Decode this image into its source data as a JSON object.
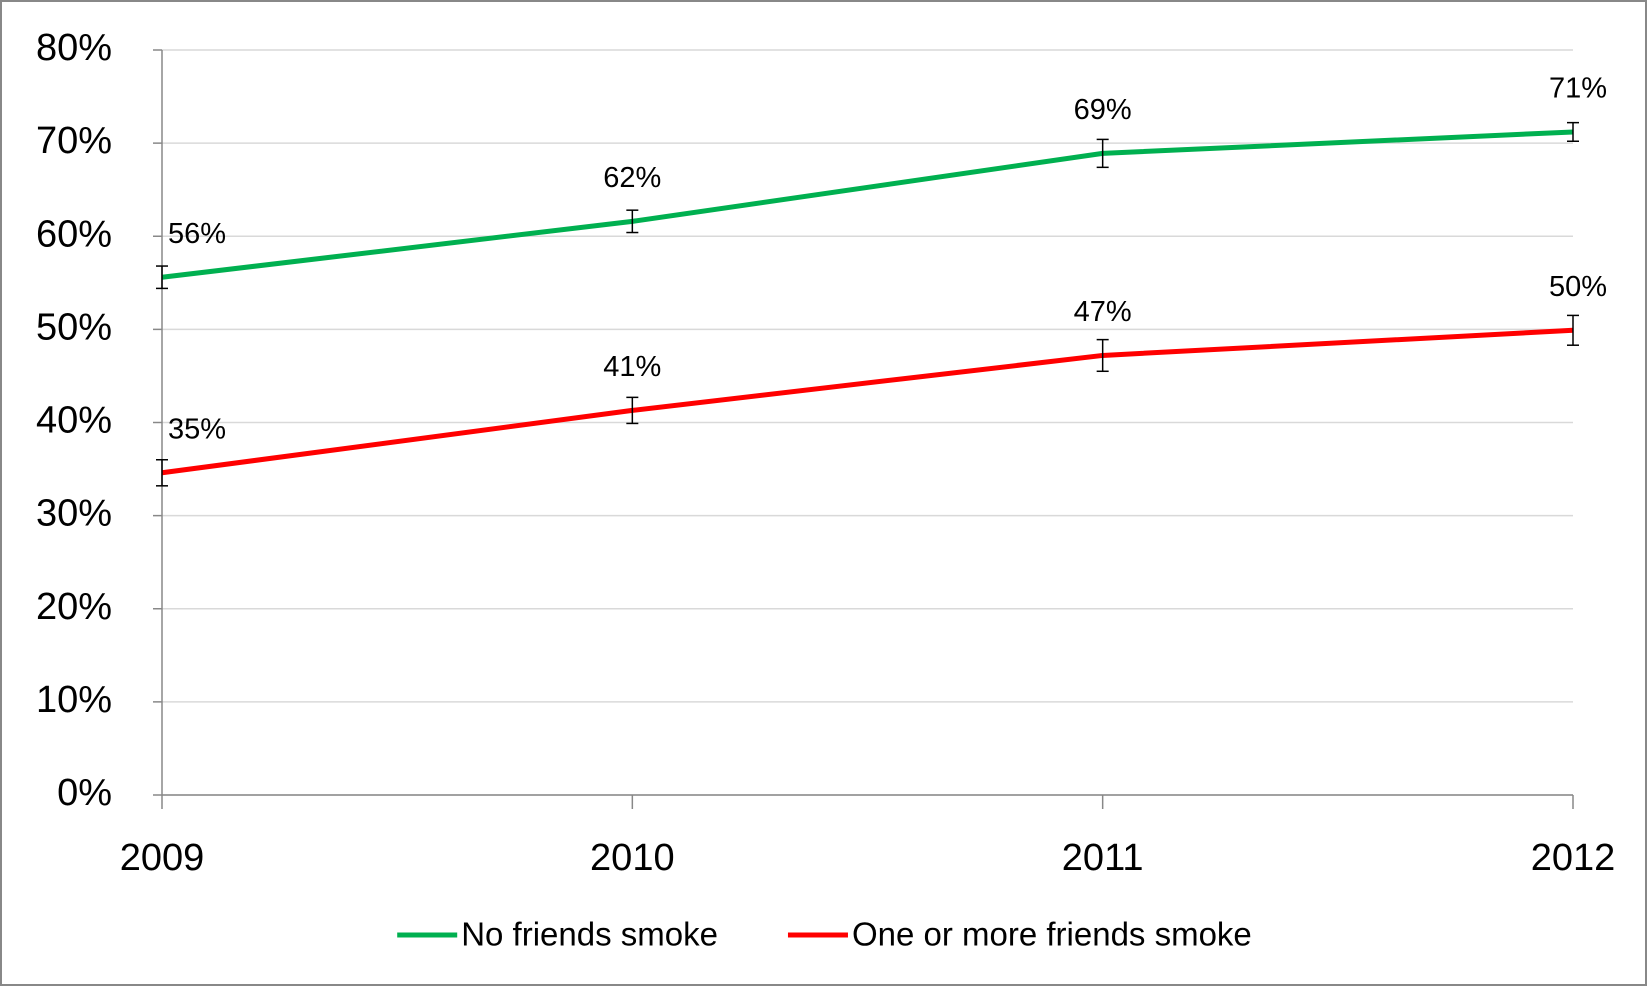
{
  "chart_data": {
    "type": "line",
    "categories": [
      "2009",
      "2010",
      "2011",
      "2012"
    ],
    "series": [
      {
        "name": "No friends smoke",
        "color": "#00b050",
        "values": [
          55.6,
          61.6,
          68.9,
          71.2
        ],
        "value_labels": [
          "56%",
          "62%",
          "69%",
          "71%"
        ],
        "errors": [
          1.2,
          1.2,
          1.5,
          1.0
        ]
      },
      {
        "name": "One or more friends smoke",
        "color": "#ff0000",
        "values": [
          34.6,
          41.3,
          47.2,
          49.9
        ],
        "value_labels": [
          "35%",
          "41%",
          "47%",
          "50%"
        ],
        "errors": [
          1.4,
          1.4,
          1.7,
          1.6
        ]
      }
    ],
    "ylim": [
      0,
      80
    ],
    "yticks": [
      {
        "value": 0,
        "label": "0%"
      },
      {
        "value": 10,
        "label": "10%"
      },
      {
        "value": 20,
        "label": "20%"
      },
      {
        "value": 30,
        "label": "30%"
      },
      {
        "value": 40,
        "label": "40%"
      },
      {
        "value": 50,
        "label": "50%"
      },
      {
        "value": 60,
        "label": "60%"
      },
      {
        "value": 70,
        "label": "70%"
      },
      {
        "value": 80,
        "label": "80%"
      }
    ],
    "grid": true,
    "legend": "bottom"
  }
}
